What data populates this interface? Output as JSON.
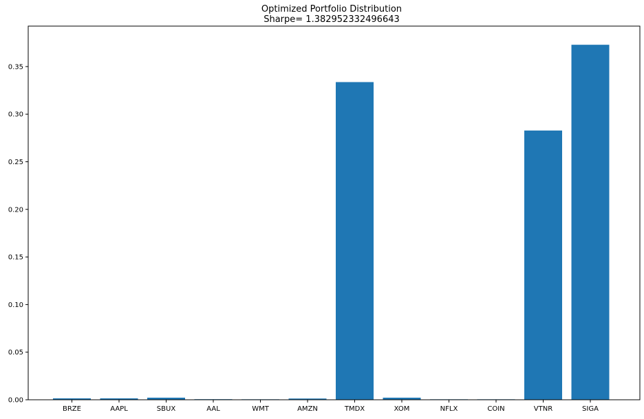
{
  "chart_data": {
    "type": "bar",
    "title": "Optimized Portfolio Distribution",
    "subtitle": "Sharpe= 1.382952332496643",
    "xlabel": "",
    "ylabel": "",
    "categories": [
      "BRZE",
      "AAPL",
      "SBUX",
      "AAL",
      "WMT",
      "AMZN",
      "TMDX",
      "XOM",
      "NFLX",
      "COIN",
      "VTNR",
      "SIGA"
    ],
    "values": [
      0.0015,
      0.0015,
      0.0022,
      0.0006,
      0.0005,
      0.0013,
      0.3337,
      0.0022,
      0.0005,
      0.0005,
      0.2828,
      0.3729
    ],
    "ylim": [
      0,
      0.3925
    ],
    "yticks": [
      0.0,
      0.05,
      0.1,
      0.15,
      0.2,
      0.25,
      0.3,
      0.35
    ],
    "ytick_labels": [
      "0.00",
      "0.05",
      "0.10",
      "0.15",
      "0.20",
      "0.25",
      "0.30",
      "0.35"
    ],
    "bar_color": "#1f77b4",
    "grid": false,
    "legend": "none"
  }
}
